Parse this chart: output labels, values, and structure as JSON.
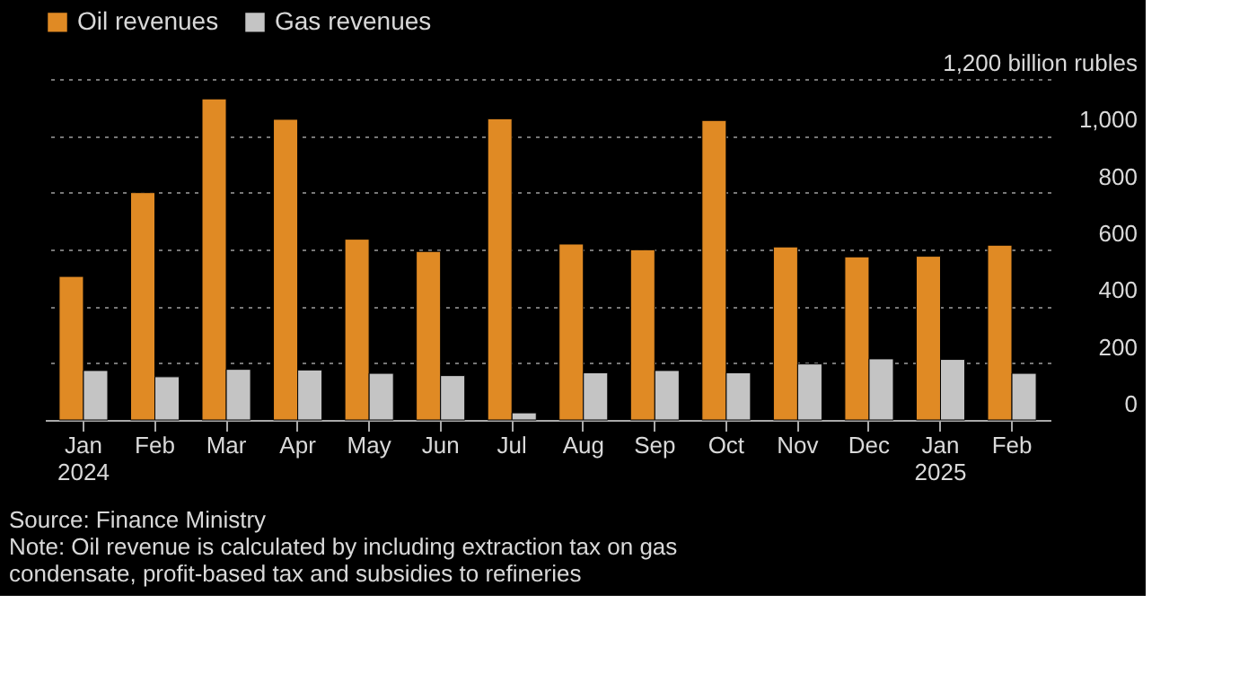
{
  "chart_data": {
    "type": "bar",
    "categories": [
      "Jan 2024",
      "Feb",
      "Mar",
      "Apr",
      "May",
      "Jun",
      "Jul",
      "Aug",
      "Sep",
      "Oct",
      "Nov",
      "Dec",
      "Jan 2025",
      "Feb"
    ],
    "series": [
      {
        "name": "Oil revenues",
        "color": "#e08a24",
        "values": [
          505,
          800,
          1130,
          1058,
          636,
          593,
          1060,
          619,
          599,
          1054,
          609,
          574,
          576,
          615
        ]
      },
      {
        "name": "Gas revenues",
        "color": "#c4c4c4",
        "values": [
          174,
          152,
          178,
          176,
          164,
          156,
          25,
          166,
          174,
          166,
          197,
          215,
          213,
          164
        ]
      }
    ],
    "ylim": [
      0,
      1200
    ],
    "yticks": [
      0,
      200,
      400,
      600,
      800,
      {
        "value": 1000,
        "label": "1,000"
      },
      {
        "value": 1200,
        "label": "1,200 billion rubles"
      }
    ],
    "grid": "y",
    "legend": "top left",
    "annotations": [
      "Source: Finance Ministry",
      "Note: Oil revenue is calculated by including extraction tax on gas condensate, profit-based tax and subsidies to refineries"
    ]
  }
}
